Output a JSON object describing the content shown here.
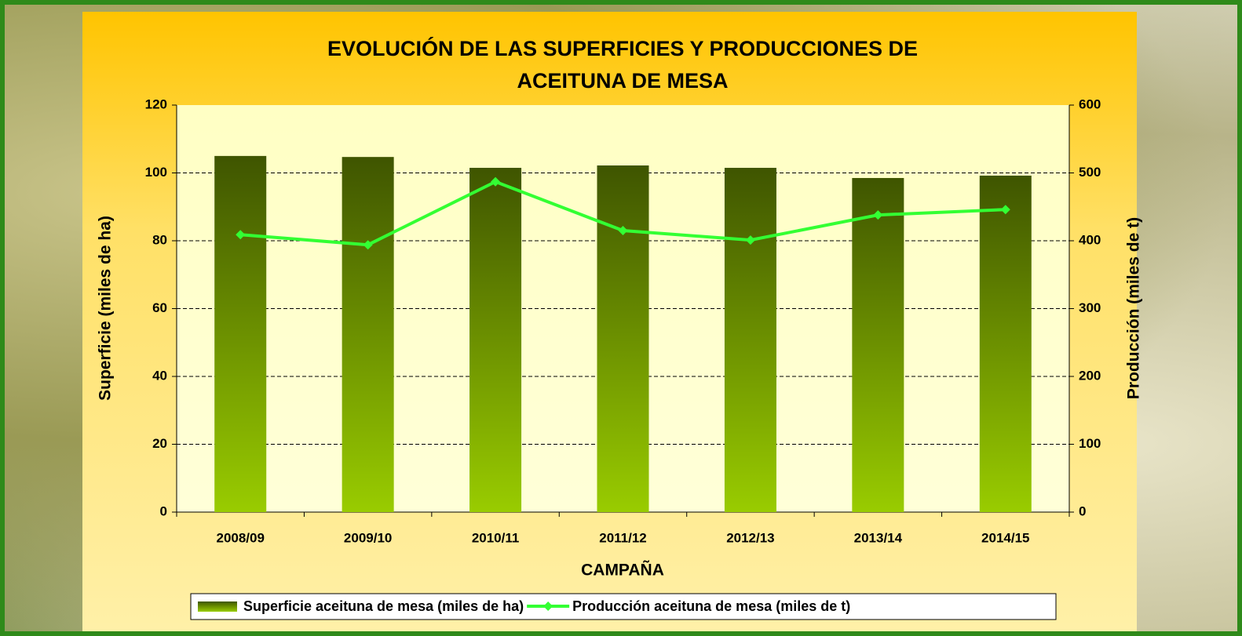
{
  "chart_data": {
    "type": "combo",
    "title": [
      "EVOLUCIÓN DE LAS SUPERFICIES Y PRODUCCIONES DE",
      "ACEITUNA DE MESA"
    ],
    "x_label": "CAMPAÑA",
    "y_label": "Superficie (miles de ha)",
    "y2_label": "Producción (miles de t)",
    "categories": [
      "2008/09",
      "2009/10",
      "2010/11",
      "2011/12",
      "2012/13",
      "2013/14",
      "2014/15"
    ],
    "series": [
      {
        "name": "Superficie aceituna de mesa (miles de ha)",
        "type": "bar",
        "color": "#3f5500",
        "values": [
          105,
          104.7,
          101.5,
          102.2,
          101.5,
          98.5,
          99.2
        ]
      },
      {
        "name": "Producción aceituna de mesa (miles de t)",
        "type": "line",
        "axis": "y2",
        "color": "#33ff33",
        "values": [
          409,
          394,
          487,
          415,
          401,
          438,
          446
        ]
      }
    ],
    "ylim": [
      0,
      120
    ],
    "yticks": [
      0,
      20,
      40,
      60,
      80,
      100,
      120
    ],
    "y2lim": [
      0,
      600
    ],
    "y2ticks": [
      0,
      100,
      200,
      300,
      400,
      500,
      600
    ],
    "grid": true,
    "legend": "bottom"
  }
}
